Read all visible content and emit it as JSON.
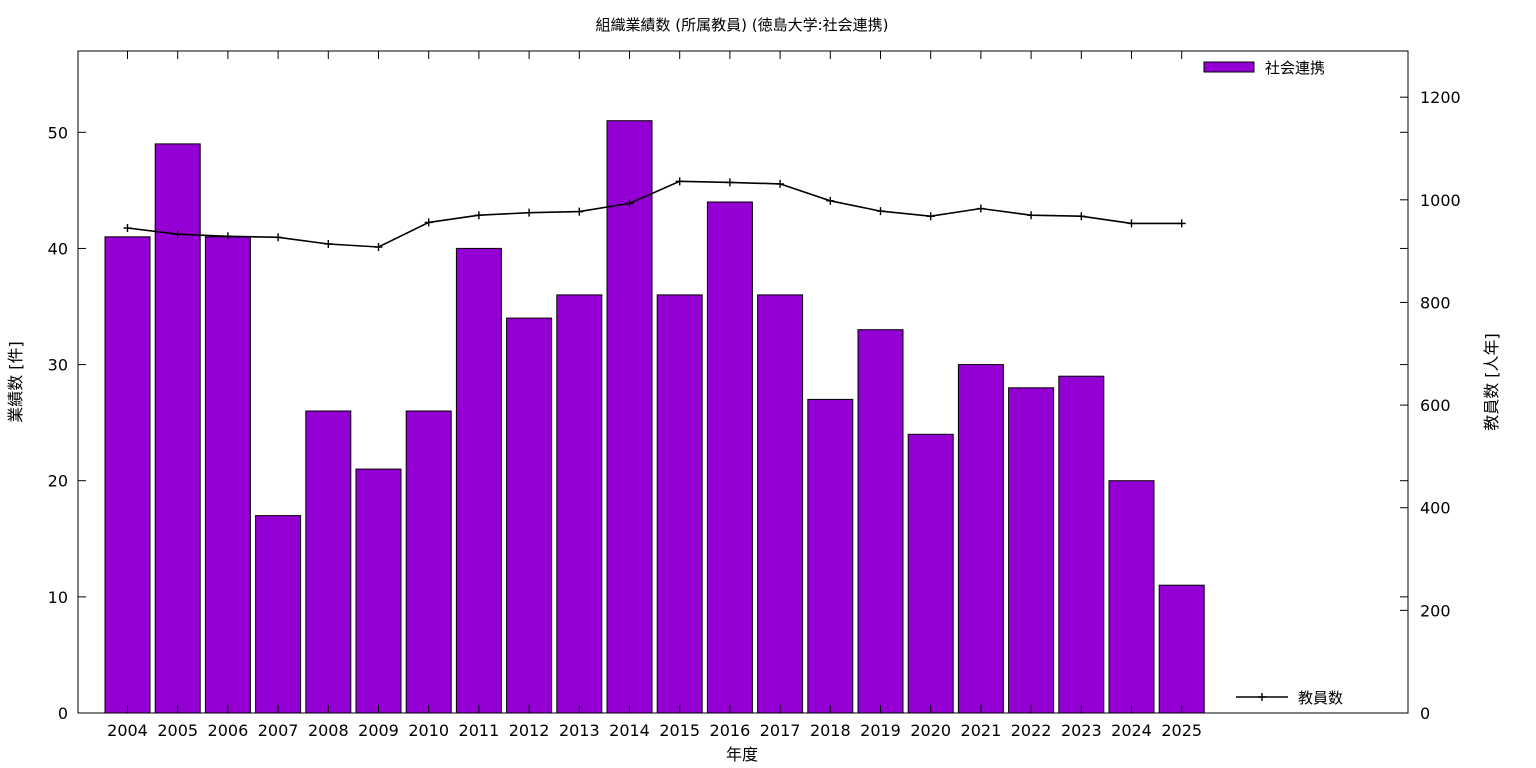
{
  "chart_data": {
    "type": "bar",
    "title": "組織業績数 (所属教員) (徳島大学:社会連携)",
    "xlabel": "年度",
    "ylabel": "業績数 [件]",
    "y2label": "教員数 [人年]",
    "categories": [
      "2004",
      "2005",
      "2006",
      "2007",
      "2008",
      "2009",
      "2010",
      "2011",
      "2012",
      "2013",
      "2014",
      "2015",
      "2016",
      "2017",
      "2018",
      "2019",
      "2020",
      "2021",
      "2022",
      "2023",
      "2024",
      "2025"
    ],
    "series": [
      {
        "name": "社会連携",
        "type": "bar",
        "axis": "left",
        "color": "#9400d3",
        "values": [
          41,
          49,
          41,
          17,
          26,
          21,
          26,
          40,
          34,
          36,
          51,
          36,
          44,
          36,
          27,
          33,
          24,
          30,
          28,
          29,
          20,
          11
        ]
      },
      {
        "name": "教員数",
        "type": "line",
        "axis": "right",
        "color": "#000000",
        "values": [
          945,
          933,
          929,
          927,
          914,
          908,
          956,
          970,
          975,
          977,
          993,
          1036,
          1034,
          1031,
          998,
          978,
          968,
          983,
          970,
          968,
          954,
          954
        ]
      }
    ],
    "ylim": [
      0,
      57
    ],
    "y2lim": [
      0,
      1290
    ],
    "yticks": [
      0,
      10,
      20,
      30,
      40,
      50
    ],
    "y2ticks": [
      0,
      200,
      400,
      600,
      800,
      1000,
      1200
    ],
    "legend": [
      {
        "label": "社会連携",
        "position": "top-right"
      },
      {
        "label": "教員数",
        "position": "bottom-right"
      }
    ],
    "grid": false
  }
}
